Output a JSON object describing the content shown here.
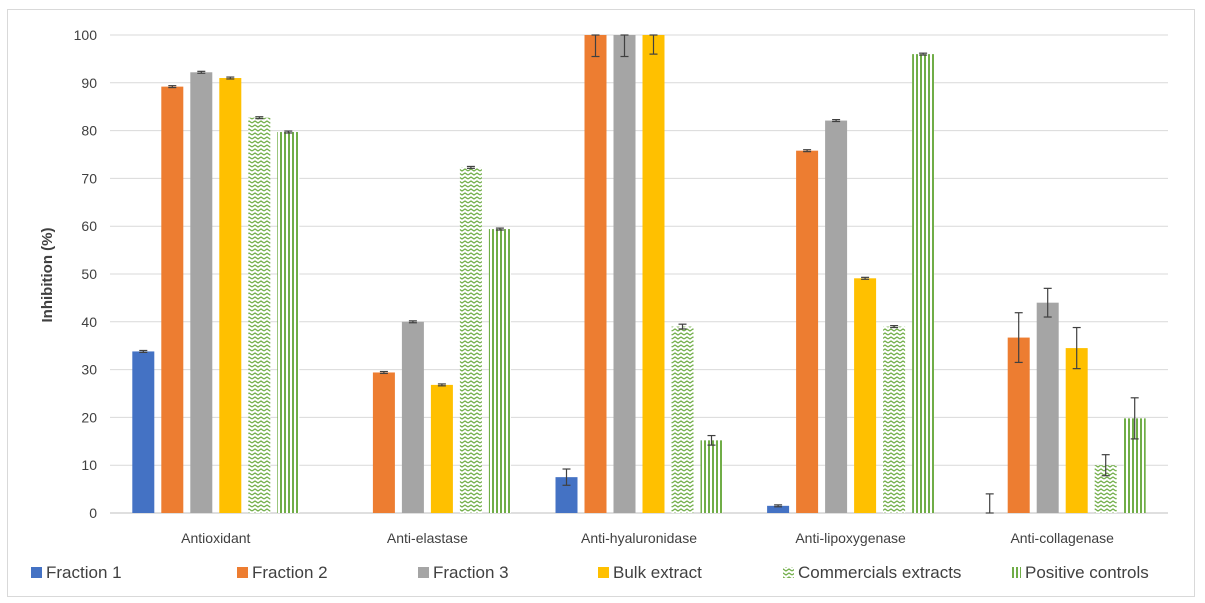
{
  "chart_data": {
    "type": "bar",
    "title": "",
    "xlabel": "",
    "ylabel": "Inhibition (%)",
    "ylim": [
      0,
      100
    ],
    "yticks": [
      0,
      10,
      20,
      30,
      40,
      50,
      60,
      70,
      80,
      90,
      100
    ],
    "grid": true,
    "legend_position": "bottom",
    "categories": [
      "Antioxidant",
      "Anti-elastase",
      "Anti-hyaluronidase",
      "Anti-lipoxygenase",
      "Anti-collagenase"
    ],
    "series": [
      {
        "name": "Fraction 1",
        "color": "#4472c4",
        "pattern": "solid",
        "values": [
          33.8,
          0,
          7.5,
          1.5,
          0
        ],
        "errors": [
          0.2,
          0,
          1.7,
          0.2,
          4.0
        ]
      },
      {
        "name": "Fraction 2",
        "color": "#ed7d31",
        "pattern": "solid",
        "values": [
          89.2,
          29.4,
          100,
          75.8,
          36.7
        ],
        "errors": [
          0.2,
          0.2,
          4.5,
          0.2,
          5.2
        ]
      },
      {
        "name": "Fraction 3",
        "color": "#a5a5a5",
        "pattern": "solid",
        "values": [
          92.2,
          40.0,
          100,
          82.1,
          44.0
        ],
        "errors": [
          0.2,
          0.2,
          4.5,
          0.2,
          3.0
        ]
      },
      {
        "name": "Bulk extract",
        "color": "#ffc000",
        "pattern": "solid",
        "values": [
          91.0,
          26.8,
          100,
          49.1,
          34.5
        ],
        "errors": [
          0.2,
          0.2,
          4.0,
          0.2,
          4.3
        ]
      },
      {
        "name": "Commercials extracts",
        "color": "#70ad47",
        "pattern": "zigzag",
        "values": [
          82.7,
          72.3,
          39.0,
          39.0,
          10.0
        ],
        "errors": [
          0.2,
          0.2,
          0.5,
          0.2,
          2.2
        ]
      },
      {
        "name": "Positive controls",
        "color": "#70ad47",
        "pattern": "vertical",
        "values": [
          79.7,
          59.4,
          15.2,
          96.0,
          19.8
        ],
        "errors": [
          0.2,
          0.2,
          1.0,
          0.2,
          4.3
        ]
      }
    ]
  }
}
